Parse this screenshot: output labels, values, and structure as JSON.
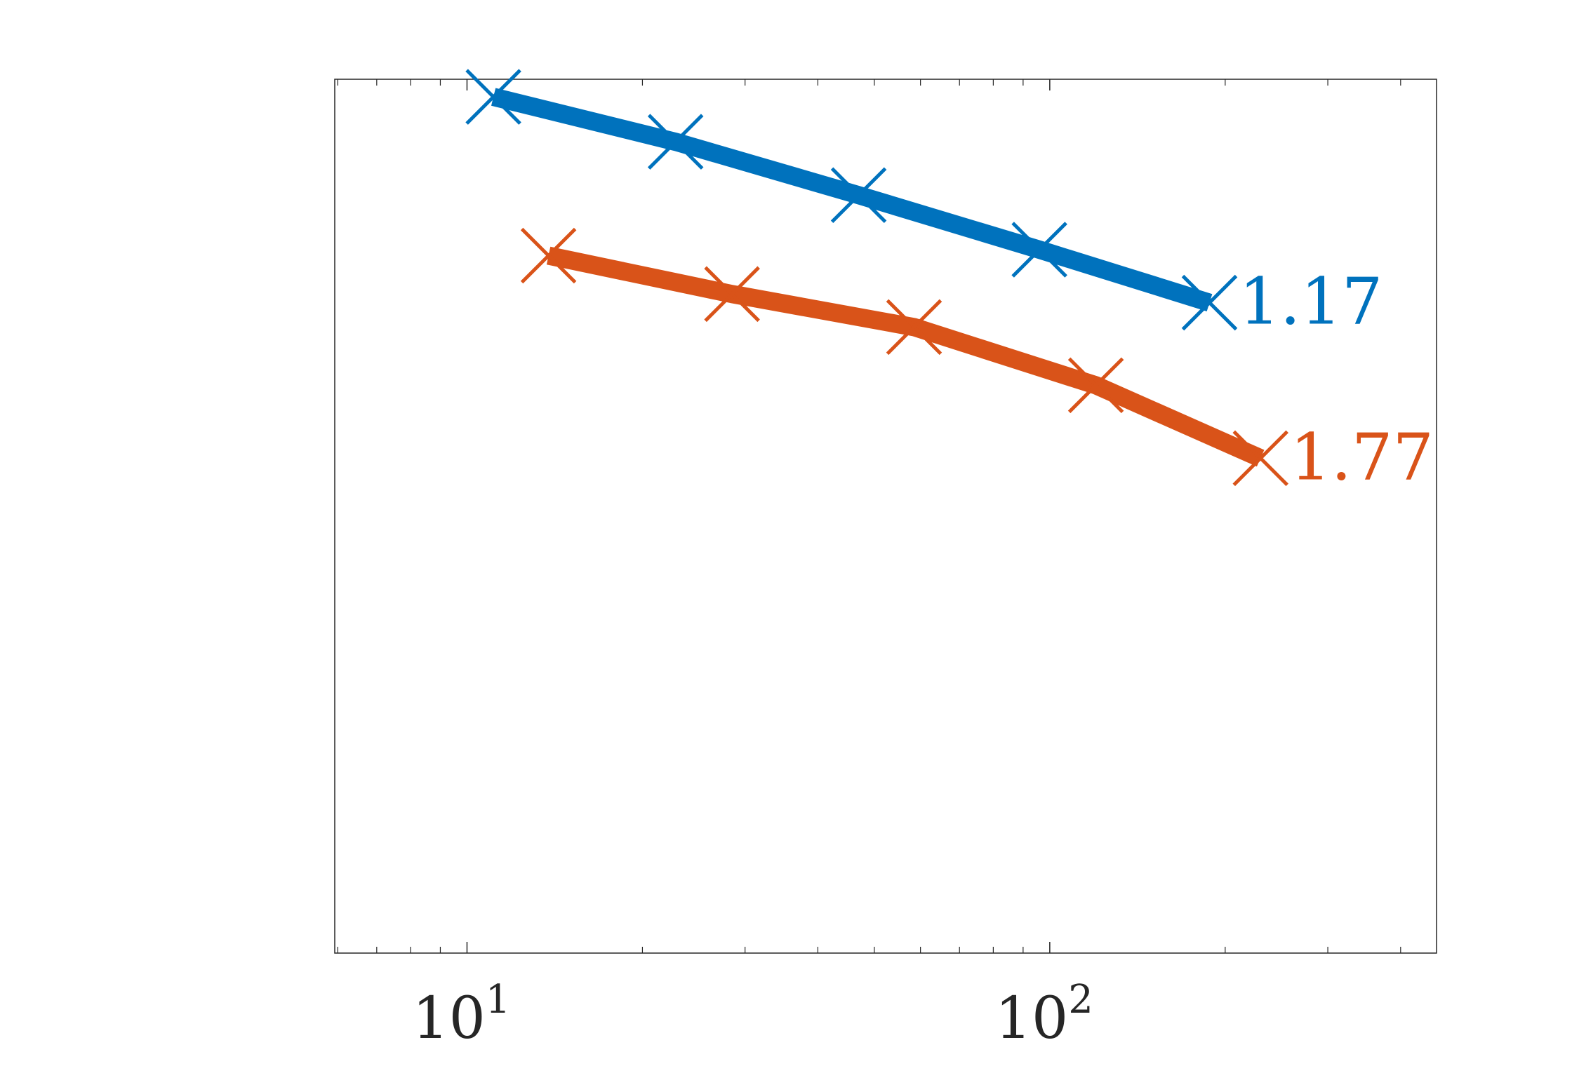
{
  "chart_data": {
    "type": "line",
    "title": "",
    "xlabel": "",
    "ylabel": "",
    "x_scale": "log",
    "y_scale": "log",
    "xlim": [
      5.93,
      461
    ],
    "ylim": [
      0.001,
      1
    ],
    "grid": false,
    "x_ticks": [
      {
        "value": 10,
        "base": "10",
        "exp": "1"
      },
      {
        "value": 100,
        "base": "10",
        "exp": "2"
      }
    ],
    "series": [
      {
        "color": "#0072BD",
        "end_label": "1.17",
        "x": [
          11.1,
          22.8,
          47,
          96,
          188
        ],
        "y": [
          0.87,
          0.61,
          0.4,
          0.26,
          0.171
        ]
      },
      {
        "color": "#D95319",
        "end_label": "1.77",
        "x": [
          13.8,
          28.5,
          58.5,
          120,
          230
        ],
        "y": [
          0.248,
          0.183,
          0.141,
          0.089,
          0.05
        ]
      }
    ]
  }
}
